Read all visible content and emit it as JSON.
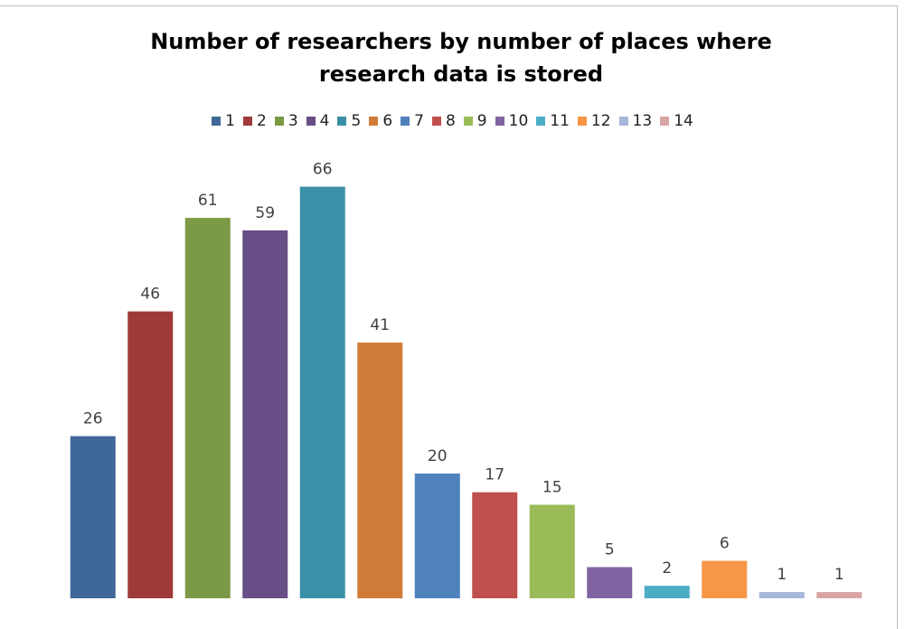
{
  "chart_data": {
    "type": "bar",
    "title": "Number of researchers by number of places where research data is stored",
    "series": [
      {
        "name": "1",
        "color": "#3f6797",
        "values": [
          26
        ]
      },
      {
        "name": "2",
        "color": "#9e3b39",
        "values": [
          46
        ]
      },
      {
        "name": "3",
        "color": "#7c9a46",
        "values": [
          61
        ]
      },
      {
        "name": "4",
        "color": "#674e86",
        "values": [
          59
        ]
      },
      {
        "name": "5",
        "color": "#3a90a6",
        "values": [
          66
        ]
      },
      {
        "name": "6",
        "color": "#d07b37",
        "values": [
          41
        ]
      },
      {
        "name": "7",
        "color": "#4f81bd",
        "values": [
          20
        ]
      },
      {
        "name": "8",
        "color": "#c0504d",
        "values": [
          17
        ]
      },
      {
        "name": "9",
        "color": "#9bbb59",
        "values": [
          15
        ]
      },
      {
        "name": "10",
        "color": "#8064a2",
        "values": [
          5
        ]
      },
      {
        "name": "11",
        "color": "#4bacc6",
        "values": [
          2
        ]
      },
      {
        "name": "12",
        "color": "#f79646",
        "values": [
          6
        ]
      },
      {
        "name": "13",
        "color": "#a6b7d9",
        "values": [
          1
        ]
      },
      {
        "name": "14",
        "color": "#d9a5a4",
        "values": [
          1
        ]
      }
    ],
    "ylim": [
      0,
      70
    ],
    "legend": "top"
  }
}
